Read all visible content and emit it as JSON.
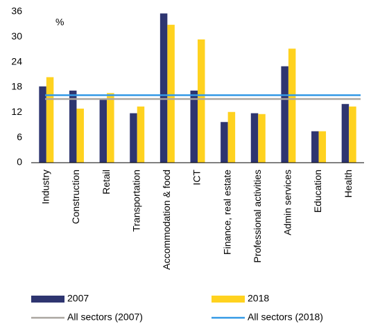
{
  "chart_data": {
    "type": "bar",
    "annotation": "%",
    "categories": [
      "Industry",
      "Construction",
      "Retail",
      "Transportation",
      "Accommodation & food",
      "ICT",
      "Finance, real estate",
      "Professional activities",
      "Admin services",
      "Education",
      "Health"
    ],
    "series": [
      {
        "name": "2007",
        "color": "#2e3570",
        "values": [
          18.2,
          17.2,
          15.0,
          11.8,
          35.6,
          17.2,
          9.7,
          11.8,
          23.0,
          7.5,
          14.0
        ]
      },
      {
        "name": "2018",
        "color": "#ffd21f",
        "values": [
          20.4,
          12.9,
          16.6,
          13.4,
          32.9,
          29.4,
          12.1,
          11.6,
          27.2,
          7.5,
          13.4
        ]
      }
    ],
    "reference_lines": [
      {
        "name": "All sectors (2007)",
        "color": "#aaa6a0",
        "value": 15.2
      },
      {
        "name": "All sectors (2018)",
        "color": "#3399e6",
        "value": 16.1
      }
    ],
    "ylim": [
      0,
      36
    ],
    "yticks": [
      0,
      6,
      12,
      18,
      24,
      30,
      36
    ],
    "grid": false
  }
}
